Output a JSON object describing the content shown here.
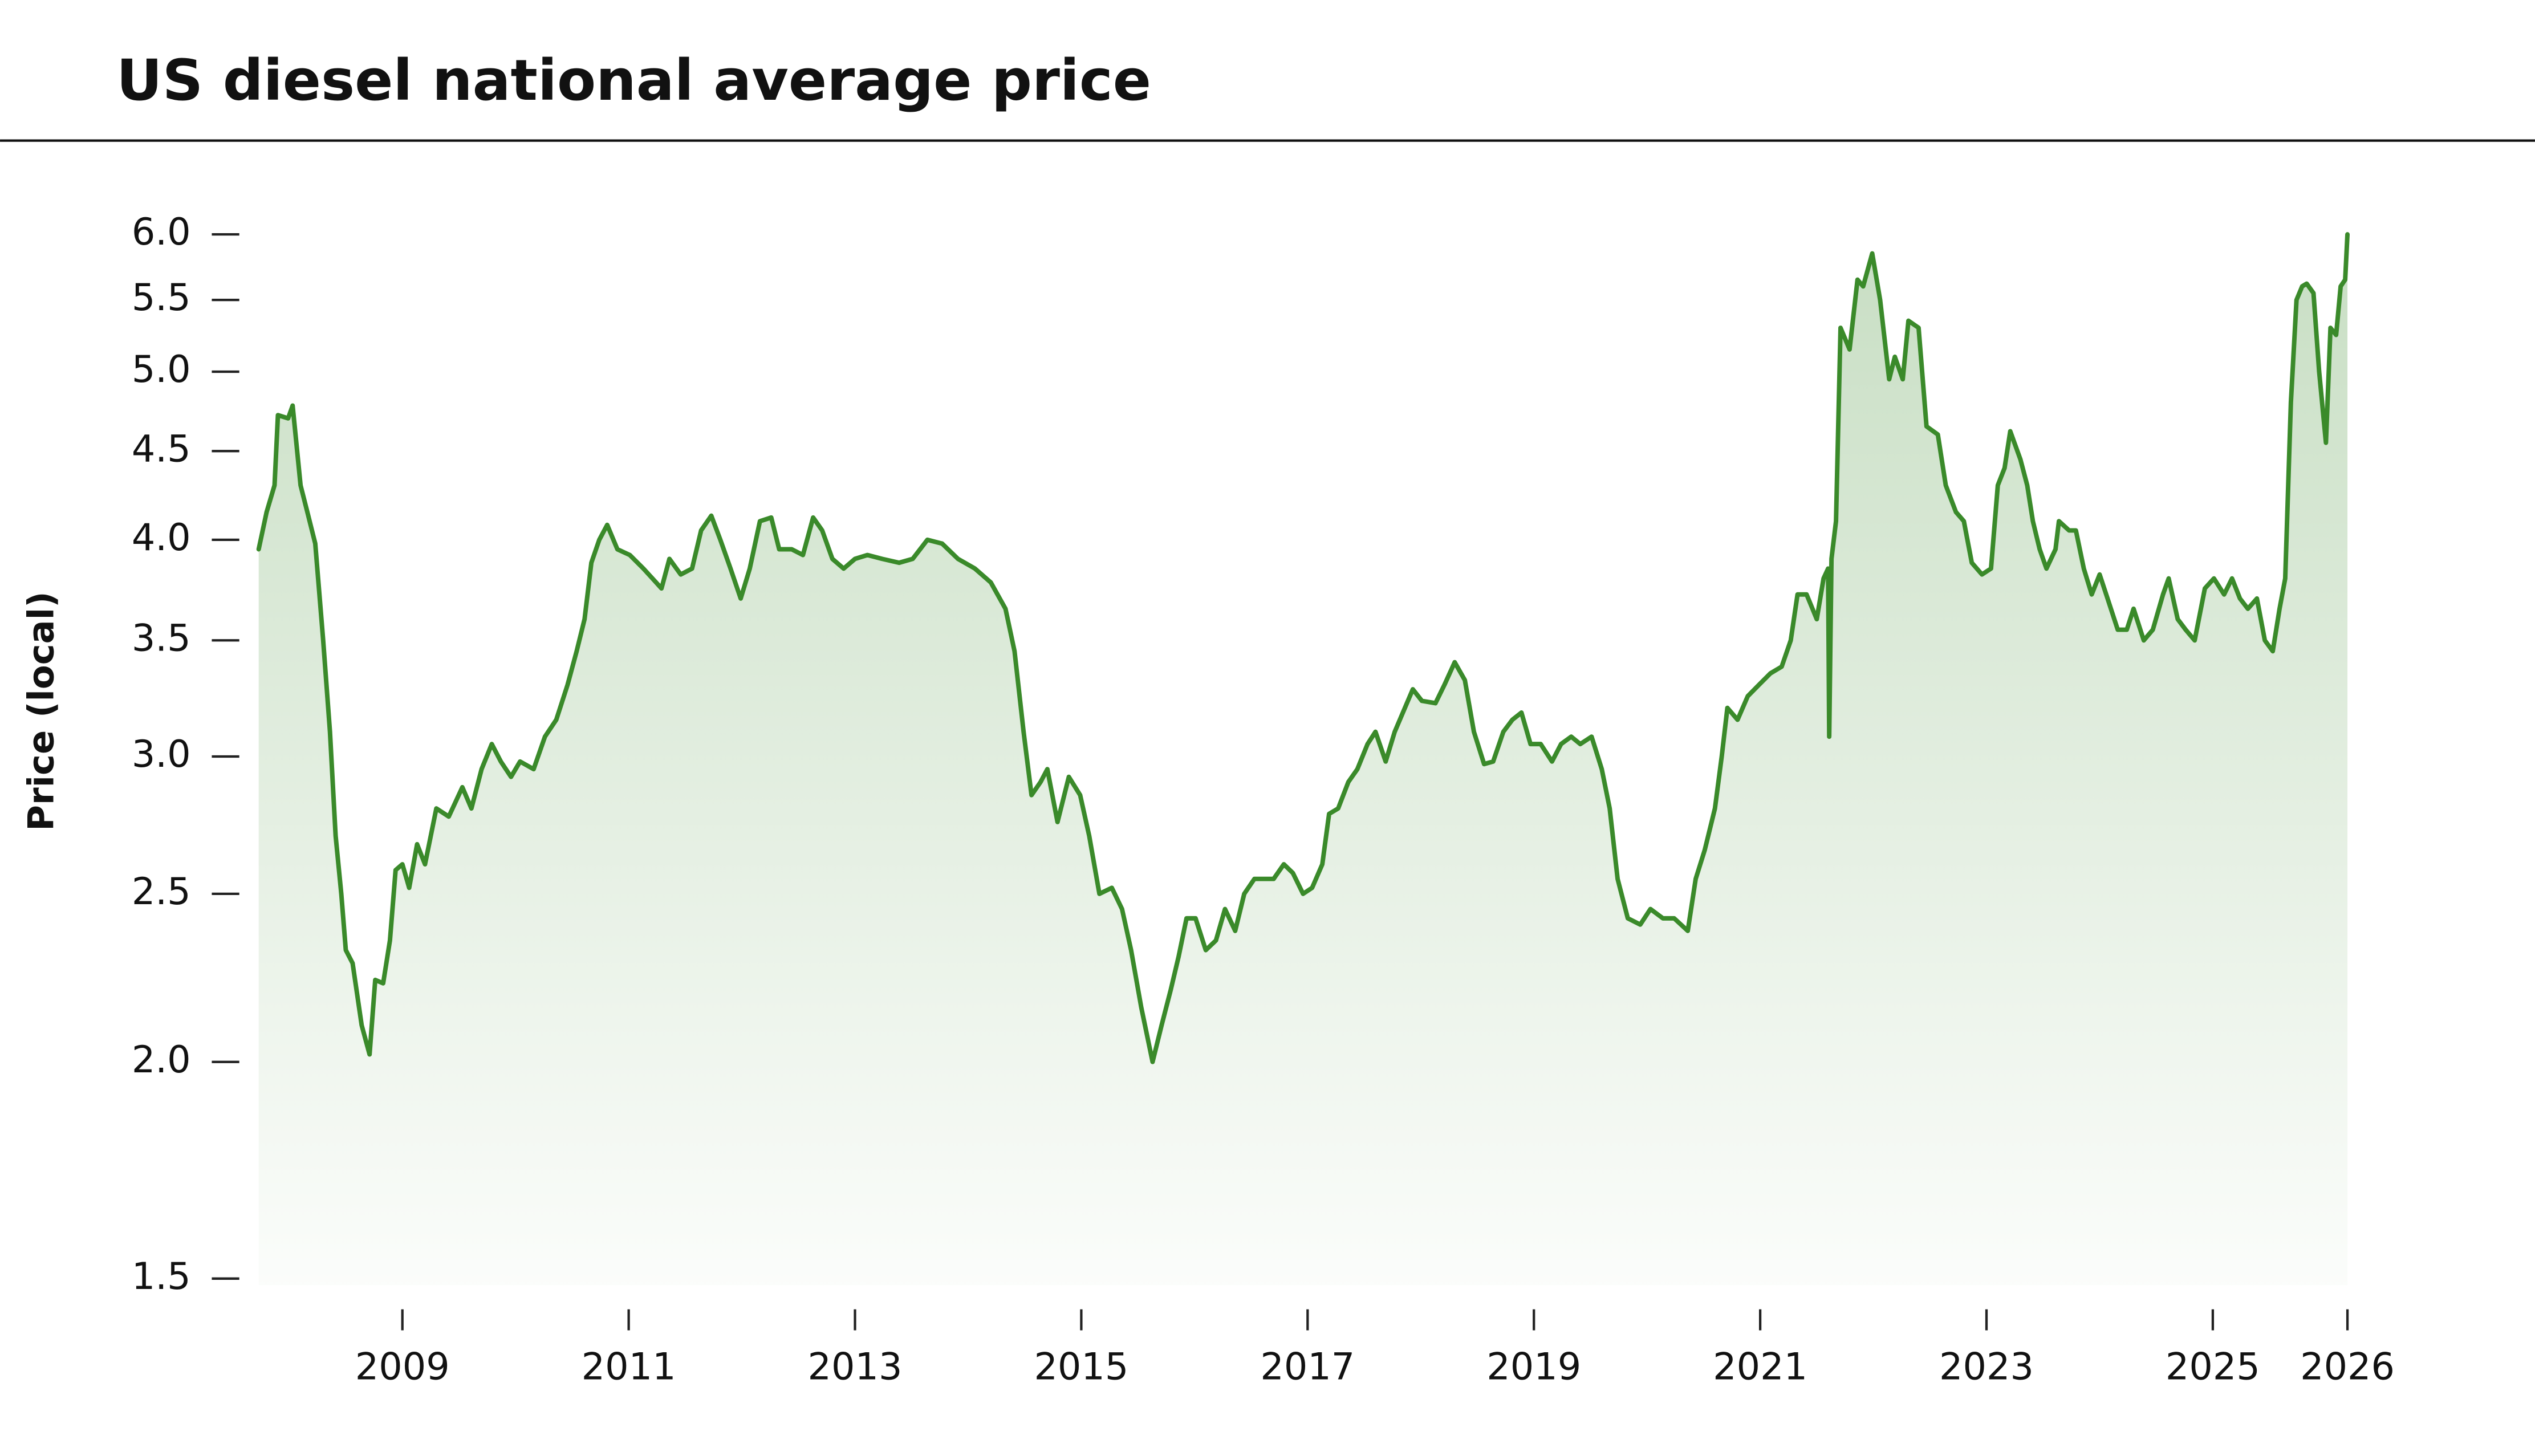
{
  "chart_data": {
    "type": "line",
    "title": "US diesel national average price",
    "ylabel": "Price (local)",
    "log_scale_y": true,
    "color": "#3a8a2a",
    "area_fill": true,
    "ylim": [
      1.5,
      6.0
    ],
    "yticks": [
      1.5,
      {
        "value": 2,
        "label": "2.0"
      },
      2.5,
      {
        "value": 3,
        "label": "3.0"
      },
      3.5,
      {
        "value": 4,
        "label": "4.0"
      },
      4.5,
      {
        "value": 5,
        "label": "5.0"
      },
      5.5,
      {
        "value": 6,
        "label": "6.0"
      }
    ],
    "xlim": [
      2007.73,
      2026.19
    ],
    "xticks": [
      2009,
      2011,
      2013,
      2015,
      2017,
      2019,
      2021,
      2023,
      2025,
      {
        "value": 2026.19,
        "label": "2026"
      }
    ],
    "x": [
      2007.73,
      2007.8,
      2007.87,
      2007.9,
      2007.99,
      2008.03,
      2008.1,
      2008.16,
      2008.23,
      2008.3,
      2008.36,
      2008.41,
      2008.46,
      2008.5,
      2008.56,
      2008.64,
      2008.71,
      2008.76,
      2008.83,
      2008.89,
      2008.94,
      2009.0,
      2009.06,
      2009.13,
      2009.2,
      2009.3,
      2009.41,
      2009.53,
      2009.61,
      2009.7,
      2009.79,
      2009.87,
      2009.96,
      2010.04,
      2010.16,
      2010.26,
      2010.36,
      2010.46,
      2010.54,
      2010.61,
      2010.67,
      2010.74,
      2010.81,
      2010.9,
      2011.01,
      2011.13,
      2011.21,
      2011.29,
      2011.36,
      2011.46,
      2011.56,
      2011.64,
      2011.73,
      2011.81,
      2011.9,
      2011.99,
      2012.07,
      2012.16,
      2012.26,
      2012.33,
      2012.44,
      2012.54,
      2012.63,
      2012.71,
      2012.8,
      2012.9,
      2013.0,
      2013.11,
      2013.24,
      2013.39,
      2013.51,
      2013.64,
      2013.77,
      2013.91,
      2014.06,
      2014.2,
      2014.33,
      2014.41,
      2014.49,
      2014.56,
      2014.64,
      2014.7,
      2014.79,
      2014.89,
      2014.99,
      2015.07,
      2015.16,
      2015.27,
      2015.36,
      2015.44,
      2015.53,
      2015.63,
      2015.71,
      2015.79,
      2015.86,
      2015.93,
      2016.01,
      2016.1,
      2016.19,
      2016.27,
      2016.36,
      2016.44,
      2016.53,
      2016.61,
      2016.7,
      2016.79,
      2016.87,
      2016.96,
      2017.04,
      2017.13,
      2017.19,
      2017.27,
      2017.36,
      2017.44,
      2017.53,
      2017.6,
      2017.69,
      2017.77,
      2017.86,
      2017.93,
      2018.01,
      2018.13,
      2018.21,
      2018.3,
      2018.39,
      2018.47,
      2018.56,
      2018.64,
      2018.73,
      2018.81,
      2018.89,
      2018.97,
      2019.06,
      2019.16,
      2019.24,
      2019.33,
      2019.41,
      2019.51,
      2019.6,
      2019.67,
      2019.74,
      2019.83,
      2019.94,
      2020.03,
      2020.14,
      2020.24,
      2020.36,
      2020.43,
      2020.51,
      2020.6,
      2020.66,
      2020.71,
      2020.8,
      2020.89,
      2020.99,
      2021.09,
      2021.19,
      2021.27,
      2021.33,
      2021.41,
      2021.5,
      2021.56,
      2021.6,
      2021.61,
      2021.63,
      2021.67,
      2021.71,
      2021.79,
      2021.86,
      2021.91,
      2021.99,
      2022.06,
      2022.14,
      2022.19,
      2022.26,
      2022.31,
      2022.4,
      2022.47,
      2022.57,
      2022.64,
      2022.73,
      2022.8,
      2022.87,
      2022.96,
      2023.04,
      2023.1,
      2023.16,
      2023.21,
      2023.3,
      2023.36,
      2023.41,
      2023.47,
      2023.53,
      2023.61,
      2023.64,
      2023.73,
      2023.79,
      2023.86,
      2023.93,
      2024.0,
      2024.07,
      2024.16,
      2024.24,
      2024.3,
      2024.39,
      2024.47,
      2024.56,
      2024.61,
      2024.69,
      2024.76,
      2024.84,
      2024.93,
      2025.01,
      2025.1,
      2025.17,
      2025.24,
      2025.31,
      2025.39,
      2025.46,
      2025.53,
      2025.59,
      2025.64,
      2025.69,
      2025.74,
      2025.79,
      2025.83,
      2025.89,
      2025.94,
      2026.0,
      2026.04,
      2026.09,
      2026.13,
      2026.17,
      2026.19
    ],
    "values": [
      3.95,
      4.15,
      4.3,
      4.72,
      4.7,
      4.78,
      4.3,
      4.15,
      3.98,
      3.5,
      3.1,
      2.7,
      2.5,
      2.32,
      2.28,
      2.1,
      2.02,
      2.23,
      2.22,
      2.35,
      2.58,
      2.6,
      2.52,
      2.67,
      2.6,
      2.8,
      2.77,
      2.88,
      2.8,
      2.95,
      3.05,
      2.98,
      2.92,
      2.98,
      2.95,
      3.08,
      3.15,
      3.3,
      3.45,
      3.6,
      3.88,
      4.0,
      4.08,
      3.95,
      3.92,
      3.85,
      3.8,
      3.75,
      3.9,
      3.82,
      3.85,
      4.05,
      4.13,
      4.0,
      3.85,
      3.7,
      3.85,
      4.1,
      4.12,
      3.95,
      3.95,
      3.92,
      4.12,
      4.05,
      3.9,
      3.85,
      3.9,
      3.92,
      3.9,
      3.88,
      3.9,
      4.0,
      3.98,
      3.9,
      3.85,
      3.78,
      3.65,
      3.45,
      3.1,
      2.85,
      2.9,
      2.95,
      2.75,
      2.92,
      2.85,
      2.7,
      2.5,
      2.52,
      2.45,
      2.32,
      2.15,
      2.0,
      2.1,
      2.2,
      2.3,
      2.42,
      2.42,
      2.32,
      2.35,
      2.45,
      2.38,
      2.5,
      2.55,
      2.55,
      2.55,
      2.6,
      2.57,
      2.5,
      2.52,
      2.6,
      2.78,
      2.8,
      2.9,
      2.95,
      3.05,
      3.1,
      2.98,
      3.1,
      3.2,
      3.28,
      3.23,
      3.22,
      3.3,
      3.4,
      3.32,
      3.1,
      2.97,
      2.98,
      3.1,
      3.15,
      3.18,
      3.05,
      3.05,
      2.98,
      3.05,
      3.08,
      3.05,
      3.08,
      2.95,
      2.8,
      2.55,
      2.42,
      2.4,
      2.45,
      2.42,
      2.42,
      2.38,
      2.55,
      2.65,
      2.8,
      3.0,
      3.2,
      3.15,
      3.25,
      3.3,
      3.35,
      3.38,
      3.5,
      3.72,
      3.72,
      3.6,
      3.8,
      3.85,
      3.08,
      3.9,
      4.1,
      5.3,
      5.15,
      5.65,
      5.6,
      5.85,
      5.5,
      4.95,
      5.1,
      4.95,
      5.35,
      5.3,
      4.65,
      4.6,
      4.3,
      4.15,
      4.1,
      3.88,
      3.82,
      3.85,
      4.3,
      4.4,
      4.62,
      4.45,
      4.3,
      4.1,
      3.95,
      3.85,
      3.95,
      4.1,
      4.05,
      4.05,
      3.85,
      3.72,
      3.82,
      3.7,
      3.55,
      3.55,
      3.65,
      3.5,
      3.55,
      3.72,
      3.8,
      3.6,
      3.55,
      3.5,
      3.75,
      3.8,
      3.72,
      3.8,
      3.7,
      3.65,
      3.7,
      3.5,
      3.45,
      3.65,
      3.8,
      4.8,
      5.5,
      5.6,
      5.62,
      5.55,
      5.0,
      4.55,
      5.3,
      5.25,
      5.6,
      5.65,
      6.0
    ]
  }
}
